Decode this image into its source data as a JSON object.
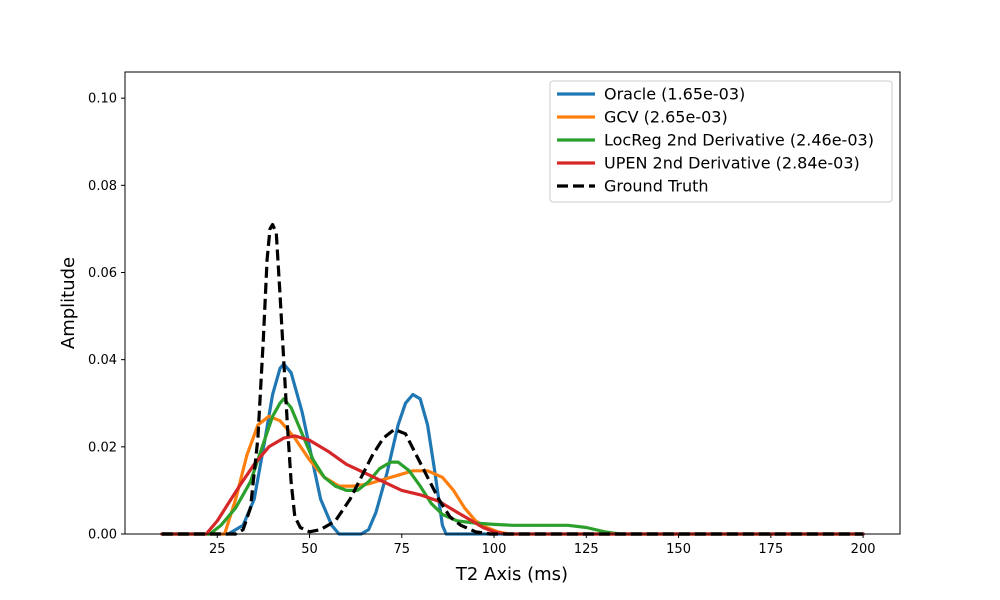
{
  "chart_data": {
    "type": "line",
    "title": "",
    "xlabel": "T2 Axis (ms)",
    "ylabel": "Amplitude",
    "xlim": [
      0,
      210
    ],
    "ylim": [
      0,
      0.106
    ],
    "x_ticks": [
      25,
      50,
      75,
      100,
      125,
      150,
      175,
      200
    ],
    "x_tick_labels": [
      "25",
      "50",
      "75",
      "100",
      "125",
      "150",
      "175",
      "200"
    ],
    "y_ticks": [
      0,
      0.02,
      0.04,
      0.06,
      0.08,
      0.1
    ],
    "y_tick_labels": [
      "0.00",
      "0.02",
      "0.04",
      "0.06",
      "0.08",
      "0.10"
    ],
    "grid": false,
    "legend_position": "top-right",
    "series": [
      {
        "name": "Oracle (1.65e-03)",
        "color": "#1f77b4",
        "style": "solid",
        "points": [
          [
            10,
            0
          ],
          [
            28,
            0
          ],
          [
            32,
            0.002
          ],
          [
            35,
            0.008
          ],
          [
            38,
            0.022
          ],
          [
            40,
            0.032
          ],
          [
            42,
            0.038
          ],
          [
            43,
            0.039
          ],
          [
            45,
            0.037
          ],
          [
            48,
            0.028
          ],
          [
            51,
            0.016
          ],
          [
            53,
            0.008
          ],
          [
            56,
            0.002
          ],
          [
            58,
            0
          ],
          [
            64,
            0
          ],
          [
            66,
            0.001
          ],
          [
            68,
            0.005
          ],
          [
            71,
            0.014
          ],
          [
            74,
            0.025
          ],
          [
            76,
            0.03
          ],
          [
            78,
            0.032
          ],
          [
            80,
            0.031
          ],
          [
            82,
            0.025
          ],
          [
            84,
            0.014
          ],
          [
            86,
            0.002
          ],
          [
            87,
            0
          ],
          [
            200,
            0
          ]
        ]
      },
      {
        "name": "GCV (2.65e-03)",
        "color": "#ff7f0e",
        "style": "solid",
        "points": [
          [
            10,
            0
          ],
          [
            27,
            0
          ],
          [
            30,
            0.008
          ],
          [
            33,
            0.018
          ],
          [
            36,
            0.025
          ],
          [
            39,
            0.027
          ],
          [
            42,
            0.026
          ],
          [
            46,
            0.022
          ],
          [
            50,
            0.017
          ],
          [
            54,
            0.013
          ],
          [
            58,
            0.011
          ],
          [
            62,
            0.011
          ],
          [
            66,
            0.0115
          ],
          [
            70,
            0.0125
          ],
          [
            74,
            0.0135
          ],
          [
            78,
            0.0145
          ],
          [
            82,
            0.0145
          ],
          [
            86,
            0.013
          ],
          [
            89,
            0.01
          ],
          [
            92,
            0.006
          ],
          [
            95,
            0.003
          ],
          [
            98,
            0.0015
          ],
          [
            101,
            0.0005
          ],
          [
            104,
            0
          ],
          [
            200,
            0
          ]
        ]
      },
      {
        "name": "LocReg 2nd Derivative (2.46e-03)",
        "color": "#2ca02c",
        "style": "solid",
        "points": [
          [
            10,
            0
          ],
          [
            23,
            0
          ],
          [
            26,
            0.002
          ],
          [
            30,
            0.006
          ],
          [
            34,
            0.012
          ],
          [
            38,
            0.022
          ],
          [
            40,
            0.027
          ],
          [
            42,
            0.03
          ],
          [
            43,
            0.031
          ],
          [
            45,
            0.029
          ],
          [
            48,
            0.023
          ],
          [
            51,
            0.017
          ],
          [
            54,
            0.013
          ],
          [
            57,
            0.011
          ],
          [
            60,
            0.01
          ],
          [
            63,
            0.01
          ],
          [
            66,
            0.012
          ],
          [
            69,
            0.015
          ],
          [
            72,
            0.0165
          ],
          [
            74,
            0.0165
          ],
          [
            77,
            0.0145
          ],
          [
            80,
            0.011
          ],
          [
            83,
            0.007
          ],
          [
            86,
            0.0045
          ],
          [
            90,
            0.003
          ],
          [
            95,
            0.0025
          ],
          [
            100,
            0.0022
          ],
          [
            105,
            0.002
          ],
          [
            110,
            0.002
          ],
          [
            115,
            0.002
          ],
          [
            120,
            0.002
          ],
          [
            125,
            0.0015
          ],
          [
            130,
            0.0005
          ],
          [
            134,
            0
          ],
          [
            200,
            0
          ]
        ]
      },
      {
        "name": "UPEN 2nd Derivative (2.84e-03)",
        "color": "#d62728",
        "style": "solid",
        "points": [
          [
            10,
            0
          ],
          [
            22,
            0
          ],
          [
            25,
            0.003
          ],
          [
            28,
            0.007
          ],
          [
            31,
            0.011
          ],
          [
            35,
            0.016
          ],
          [
            39,
            0.02
          ],
          [
            43,
            0.022
          ],
          [
            46,
            0.0225
          ],
          [
            50,
            0.0215
          ],
          [
            55,
            0.019
          ],
          [
            60,
            0.016
          ],
          [
            65,
            0.014
          ],
          [
            70,
            0.012
          ],
          [
            75,
            0.01
          ],
          [
            80,
            0.009
          ],
          [
            85,
            0.0075
          ],
          [
            90,
            0.005
          ],
          [
            94,
            0.003
          ],
          [
            97,
            0.0015
          ],
          [
            100,
            0.0005
          ],
          [
            103,
            0
          ],
          [
            200,
            0
          ]
        ]
      },
      {
        "name": "Ground Truth",
        "color": "#000000",
        "style": "dashed",
        "points": [
          [
            10,
            0
          ],
          [
            30,
            0
          ],
          [
            32,
            0.001
          ],
          [
            34,
            0.006
          ],
          [
            36,
            0.022
          ],
          [
            37.5,
            0.045
          ],
          [
            38.5,
            0.063
          ],
          [
            39.3,
            0.07
          ],
          [
            40,
            0.071
          ],
          [
            41,
            0.069
          ],
          [
            42,
            0.055
          ],
          [
            43,
            0.04
          ],
          [
            44,
            0.025
          ],
          [
            45,
            0.012
          ],
          [
            46,
            0.004
          ],
          [
            47.5,
            0.0015
          ],
          [
            50,
            0.0005
          ],
          [
            53,
            0.001
          ],
          [
            57,
            0.003
          ],
          [
            61,
            0.008
          ],
          [
            64,
            0.013
          ],
          [
            67,
            0.018
          ],
          [
            70,
            0.022
          ],
          [
            73,
            0.024
          ],
          [
            76,
            0.023
          ],
          [
            79,
            0.018
          ],
          [
            82,
            0.013
          ],
          [
            85,
            0.008
          ],
          [
            88,
            0.004
          ],
          [
            91,
            0.002
          ],
          [
            95,
            0.0005
          ],
          [
            99,
            0
          ],
          [
            200,
            0
          ]
        ]
      }
    ]
  }
}
